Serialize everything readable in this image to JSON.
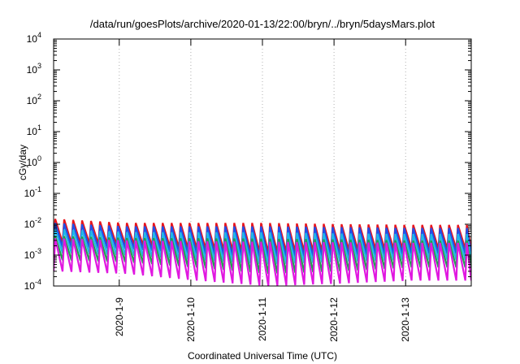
{
  "chart_data": {
    "type": "line",
    "title": "/data/run/goesPlots/archive/2020-01-13/22:00/bryn/../bryn/5daysMars.plot",
    "xlabel": "Coordinated Universal Time (UTC)",
    "ylabel": "cGy/day",
    "yscale": "log",
    "ylim": [
      0.0001,
      10000
    ],
    "xlim": [
      "2020-01-08T02:00",
      "2020-01-13T22:00"
    ],
    "grid": true,
    "y_ticks": [
      {
        "base": "10",
        "exp": "-4",
        "value": 0.0001
      },
      {
        "base": "10",
        "exp": "-3",
        "value": 0.001
      },
      {
        "base": "10",
        "exp": "-2",
        "value": 0.01
      },
      {
        "base": "10",
        "exp": "-1",
        "value": 0.1
      },
      {
        "base": "10",
        "exp": "0",
        "value": 1
      },
      {
        "base": "10",
        "exp": "1",
        "value": 10
      },
      {
        "base": "10",
        "exp": "2",
        "value": 100
      },
      {
        "base": "10",
        "exp": "3",
        "value": 1000
      },
      {
        "base": "10",
        "exp": "4",
        "value": 10000
      }
    ],
    "x_ticks": [
      {
        "label": "2020-1-9",
        "value": "2020-01-09T00:00"
      },
      {
        "label": "2020-1-10",
        "value": "2020-01-10T00:00"
      },
      {
        "label": "2020-1-11",
        "value": "2020-01-11T00:00"
      },
      {
        "label": "2020-1-12",
        "value": "2020-01-12T00:00"
      },
      {
        "label": "2020-1-13",
        "value": "2020-01-13T00:00"
      }
    ],
    "series": [
      {
        "color": "#e8141c",
        "peak_daily": [
          0.015,
          0.011,
          0.011,
          0.011,
          0.01,
          0.0095
        ],
        "trough_daily": [
          0.0025,
          0.0022,
          0.0016,
          0.0012,
          0.0014,
          0.0016
        ]
      },
      {
        "color": "#2050e8",
        "peak_daily": [
          0.011,
          0.0085,
          0.0085,
          0.0085,
          0.008,
          0.0075
        ],
        "trough_daily": [
          0.0018,
          0.0016,
          0.0011,
          0.0008,
          0.0009,
          0.0011
        ]
      },
      {
        "color": "#1fb8e8",
        "peak_daily": [
          0.007,
          0.0055,
          0.0055,
          0.0055,
          0.005,
          0.0048
        ],
        "trough_daily": [
          0.0012,
          0.001,
          0.0007,
          0.0005,
          0.0006,
          0.0007
        ]
      },
      {
        "color": "#22a050",
        "peak_daily": [
          0.0042,
          0.0036,
          0.0035,
          0.0034,
          0.0032,
          0.003
        ],
        "trough_daily": [
          0.0007,
          0.0006,
          0.0004,
          0.00025,
          0.0003,
          0.0004
        ]
      },
      {
        "color": "#e018e0",
        "peak_daily": [
          0.0035,
          0.003,
          0.0028,
          0.0027,
          0.0026,
          0.0025
        ],
        "trough_daily": [
          0.0003,
          0.00025,
          0.00015,
          0.0001,
          0.00012,
          0.00015
        ]
      }
    ],
    "sawtooth_period_hours": 3
  }
}
